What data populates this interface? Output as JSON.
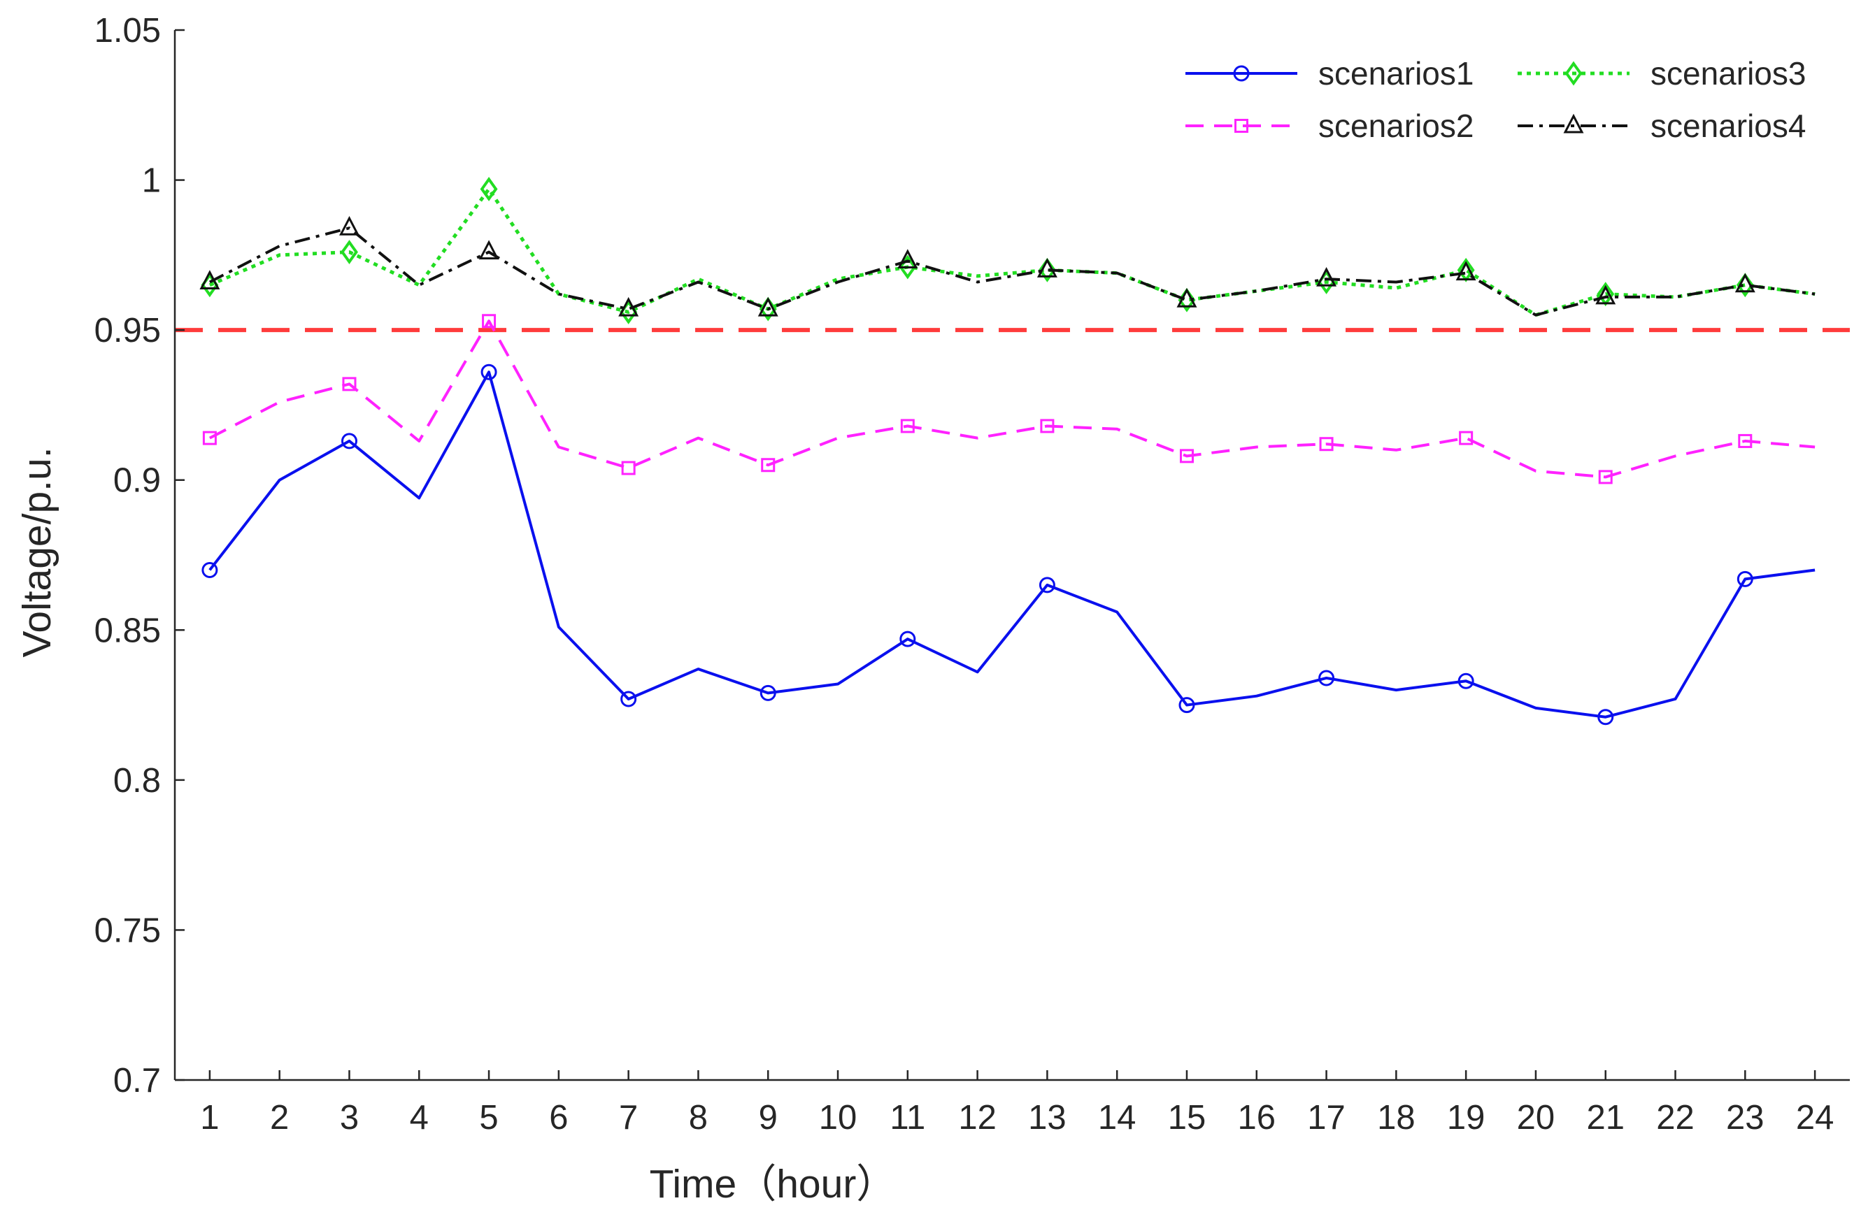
{
  "chart_data": {
    "type": "line",
    "title": "",
    "xlabel": "Time（hour）",
    "ylabel": "Voltage/p.u.",
    "xlim": [
      0.5,
      24.5
    ],
    "ylim": [
      0.7,
      1.05
    ],
    "x_ticks": [
      1,
      2,
      3,
      4,
      5,
      6,
      7,
      8,
      9,
      10,
      11,
      12,
      13,
      14,
      15,
      16,
      17,
      18,
      19,
      20,
      21,
      22,
      23,
      24
    ],
    "x_tick_labels": [
      "1",
      "2",
      "3",
      "4",
      "5",
      "6",
      "7",
      "8",
      "9",
      "10",
      "11",
      "12",
      "13",
      "14",
      "15",
      "16",
      "17",
      "18",
      "19",
      "20",
      "21",
      "22",
      "23",
      "24"
    ],
    "y_ticks": [
      0.7,
      0.75,
      0.8,
      0.85,
      0.9,
      0.95,
      1.0,
      1.05
    ],
    "y_tick_labels": [
      "0.7",
      "0.75",
      "0.8",
      "0.85",
      "0.9",
      "0.95",
      "1",
      "1.05"
    ],
    "grid": false,
    "legend_position": "top-right",
    "x": [
      1,
      2,
      3,
      4,
      5,
      6,
      7,
      8,
      9,
      10,
      11,
      12,
      13,
      14,
      15,
      16,
      17,
      18,
      19,
      20,
      21,
      22,
      23,
      24
    ],
    "reference_line": {
      "y": 0.95,
      "color": "#ff3b3b",
      "style": "dashed"
    },
    "series": [
      {
        "name": "scenarios1",
        "color": "#0a10ee",
        "line_style": "solid",
        "marker": "circle",
        "marker_every": 2,
        "values": [
          0.87,
          0.9,
          0.913,
          0.894,
          0.936,
          0.851,
          0.827,
          0.837,
          0.829,
          0.832,
          0.847,
          0.836,
          0.865,
          0.856,
          0.825,
          0.828,
          0.834,
          0.83,
          0.833,
          0.824,
          0.821,
          0.827,
          0.867,
          0.87
        ]
      },
      {
        "name": "scenarios2",
        "color": "#ff22ff",
        "line_style": "dashed",
        "marker": "square",
        "marker_every": 2,
        "values": [
          0.914,
          0.926,
          0.932,
          0.913,
          0.953,
          0.911,
          0.904,
          0.914,
          0.905,
          0.914,
          0.918,
          0.914,
          0.918,
          0.917,
          0.908,
          0.911,
          0.912,
          0.91,
          0.914,
          0.903,
          0.901,
          0.908,
          0.913,
          0.911
        ]
      },
      {
        "name": "scenarios3",
        "color": "#22dd22",
        "line_style": "dotted",
        "marker": "diamond",
        "marker_every": 2,
        "values": [
          0.965,
          0.975,
          0.976,
          0.965,
          0.997,
          0.962,
          0.956,
          0.967,
          0.957,
          0.967,
          0.971,
          0.968,
          0.97,
          0.969,
          0.96,
          0.963,
          0.966,
          0.964,
          0.97,
          0.955,
          0.962,
          0.961,
          0.965,
          0.962
        ]
      },
      {
        "name": "scenarios4",
        "color": "#111111",
        "line_style": "dashdot",
        "marker": "triangle",
        "marker_every": 2,
        "values": [
          0.966,
          0.978,
          0.984,
          0.965,
          0.976,
          0.962,
          0.957,
          0.966,
          0.957,
          0.966,
          0.973,
          0.966,
          0.97,
          0.969,
          0.96,
          0.963,
          0.967,
          0.966,
          0.969,
          0.955,
          0.961,
          0.961,
          0.965,
          0.962
        ]
      }
    ]
  }
}
